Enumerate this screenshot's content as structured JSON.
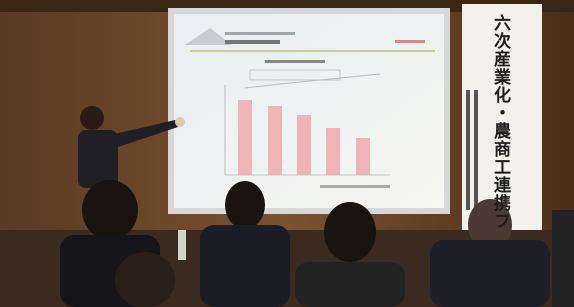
{
  "banner": {
    "title": "六次産業化・農商工連携フォ"
  }
}
